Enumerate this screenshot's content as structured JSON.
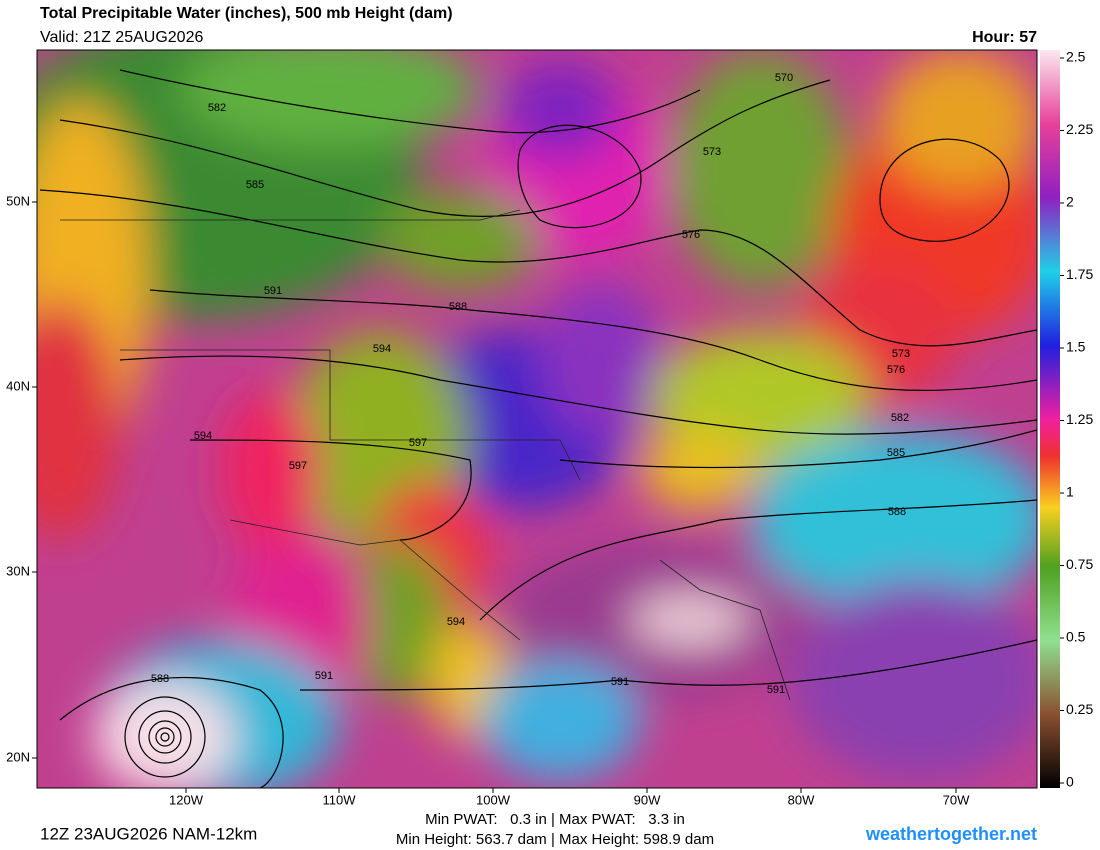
{
  "header": {
    "title": "Total Precipitable Water (inches), 500 mb Height (dam)",
    "valid": "Valid: 21Z 25AUG2026",
    "hour": "Hour: 57"
  },
  "colorbar": {
    "ticks": [
      2.5,
      2.25,
      2,
      1.75,
      1.5,
      1.25,
      1,
      0.75,
      0.5,
      0.25,
      0
    ]
  },
  "map": {
    "lat_labels": [
      "50N",
      "40N",
      "30N",
      "20N"
    ],
    "lon_labels": [
      "120W",
      "110W",
      "100W",
      "90W",
      "80W",
      "70W"
    ],
    "contour_labels": [
      "582",
      "585",
      "591",
      "594",
      "594",
      "597",
      "597",
      "588",
      "570",
      "573",
      "576",
      "573",
      "576",
      "582",
      "585",
      "588",
      "591",
      "591",
      "594",
      "591",
      "588"
    ]
  },
  "footer": {
    "run": "12Z 23AUG2026 NAM-12km",
    "pwat": "Min PWAT:   0.3 in | Max PWAT:   3.3 in",
    "height": "Min Height: 563.7 dam | Max Height: 598.9 dam",
    "site": "weathertogether.net"
  }
}
